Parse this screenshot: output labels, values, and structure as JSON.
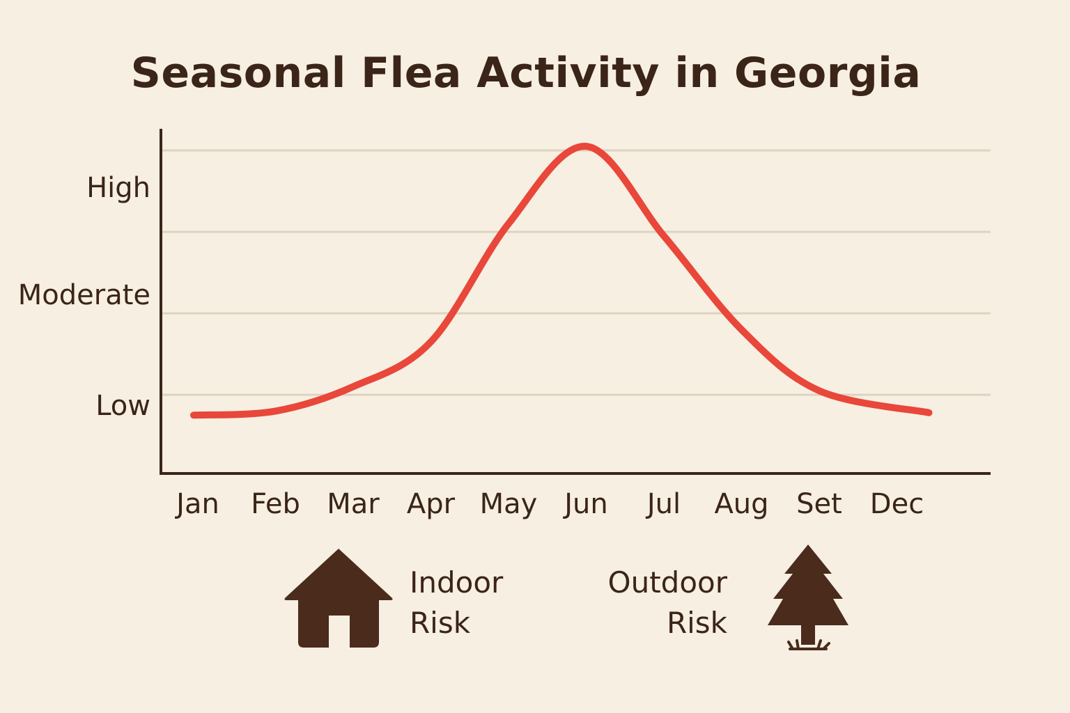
{
  "chart_data": {
    "type": "line",
    "title": "Seasonal Flea Activity in Georgia",
    "xlabel": "",
    "ylabel": "",
    "categories": [
      "Jan",
      "Feb",
      "Mar",
      "Apr",
      "May",
      "Jun",
      "Jul",
      "Aug",
      "Set",
      "Dec"
    ],
    "y_tick_labels": [
      {
        "label": "Low",
        "value": 1
      },
      {
        "label": "Moderate",
        "value": 2
      },
      {
        "label": "High",
        "value": 3
      }
    ],
    "ylim": [
      0,
      4
    ],
    "grid": true,
    "series": [
      {
        "name": "",
        "color": "#e8473a",
        "values": [
          0.75,
          0.8,
          1.1,
          1.65,
          3.1,
          4.05,
          2.95,
          1.8,
          1.05,
          0.78
        ]
      }
    ],
    "axis_color": "#3b2418",
    "grid_color": "#ddd3bf"
  },
  "legend": {
    "indoor": {
      "line1": "Indoor",
      "line2": "Risk",
      "icon": "house-icon"
    },
    "outdoor": {
      "line1": "Outdoor",
      "line2": "Risk",
      "icon": "tree-icon"
    }
  }
}
